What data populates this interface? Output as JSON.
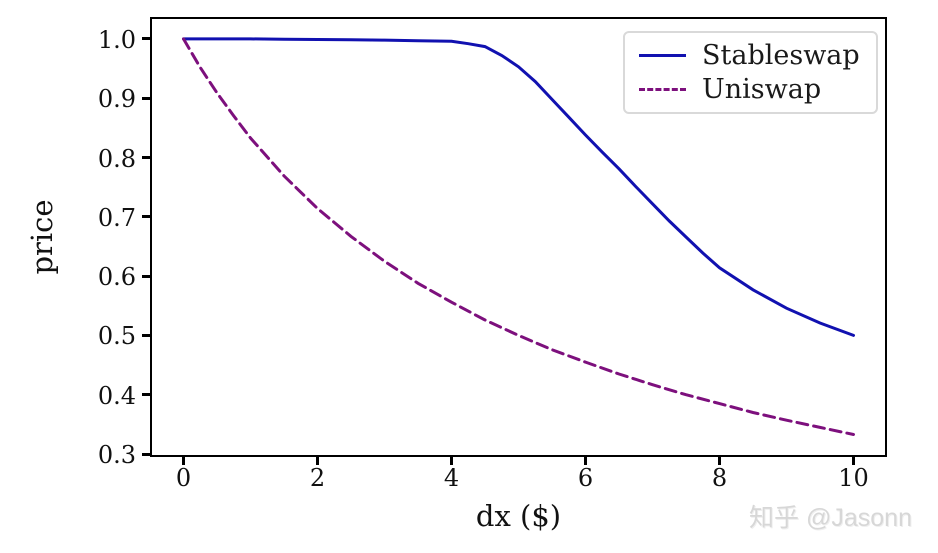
{
  "watermark": {
    "text": "知乎 @Jasonn"
  },
  "chart_data": {
    "type": "line",
    "title": "",
    "xlabel": "dx ($)",
    "ylabel": "price",
    "xlim": [
      -0.5,
      10.5
    ],
    "ylim": [
      0.295,
      1.037
    ],
    "grid": false,
    "legend_position": "upper right",
    "xticks": [
      0,
      2,
      4,
      6,
      8,
      10
    ],
    "xtick_labels": [
      "0",
      "2",
      "4",
      "6",
      "8",
      "10"
    ],
    "yticks": [
      0.3,
      0.4,
      0.5,
      0.6,
      0.7,
      0.8,
      0.9,
      1.0
    ],
    "ytick_labels": [
      "0.3",
      "0.4",
      "0.5",
      "0.6",
      "0.7",
      "0.8",
      "0.9",
      "1.0"
    ],
    "series": [
      {
        "name": "Stableswap",
        "color": "#1111b0",
        "style": "solid",
        "x": [
          0,
          0.5,
          1,
          1.5,
          2,
          2.5,
          3,
          3.5,
          4,
          4.25,
          4.5,
          4.75,
          5,
          5.25,
          5.5,
          5.75,
          6,
          6.25,
          6.5,
          6.75,
          7,
          7.25,
          7.5,
          7.75,
          8,
          8.5,
          9,
          9.5,
          10
        ],
        "y": [
          1.0,
          1.0,
          1.0,
          0.9995,
          0.999,
          0.9985,
          0.998,
          0.997,
          0.996,
          0.992,
          0.987,
          0.972,
          0.953,
          0.928,
          0.898,
          0.868,
          0.838,
          0.809,
          0.781,
          0.751,
          0.722,
          0.693,
          0.666,
          0.639,
          0.614,
          0.577,
          0.546,
          0.521,
          0.5
        ]
      },
      {
        "name": "Uniswap",
        "color": "#7d107d",
        "style": "dashed",
        "x": [
          0,
          0.25,
          0.5,
          0.75,
          1,
          1.5,
          2,
          2.5,
          3,
          3.5,
          4,
          4.5,
          5,
          5.5,
          6,
          6.5,
          7,
          7.5,
          8,
          8.5,
          9,
          9.5,
          10
        ],
        "y": [
          1.0,
          0.952,
          0.909,
          0.87,
          0.833,
          0.769,
          0.714,
          0.667,
          0.625,
          0.588,
          0.556,
          0.526,
          0.5,
          0.476,
          0.455,
          0.435,
          0.417,
          0.4,
          0.385,
          0.37,
          0.357,
          0.345,
          0.333
        ]
      }
    ]
  }
}
